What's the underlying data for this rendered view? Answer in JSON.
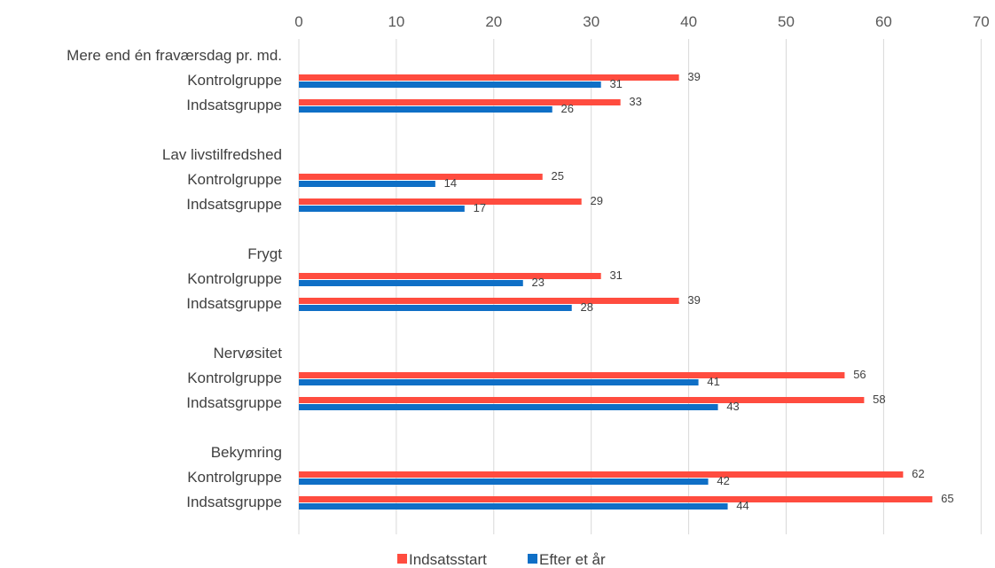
{
  "chart_data": {
    "type": "bar",
    "orientation": "horizontal",
    "xlim": [
      0,
      70
    ],
    "x_ticks": [
      0,
      10,
      20,
      30,
      40,
      50,
      60,
      70
    ],
    "x_axis_position": "top",
    "grid": true,
    "legend_position": "bottom",
    "groups": [
      "Mere end én fraværsdag pr. md.",
      "Lav livstilfredshed",
      "Frygt",
      "Nervøsitet",
      "Bekymring"
    ],
    "subcategories": [
      "Kontrolgruppe",
      "Indsatsgruppe"
    ],
    "series": [
      {
        "name": "Indsatsstart",
        "color": "#FF4C3F",
        "values": [
          [
            39,
            33
          ],
          [
            25,
            29
          ],
          [
            31,
            39
          ],
          [
            56,
            58
          ],
          [
            62,
            65
          ]
        ]
      },
      {
        "name": "Efter et år",
        "color": "#0F6FC6",
        "values": [
          [
            31,
            26
          ],
          [
            14,
            17
          ],
          [
            23,
            28
          ],
          [
            41,
            43
          ],
          [
            42,
            44
          ]
        ]
      }
    ]
  }
}
